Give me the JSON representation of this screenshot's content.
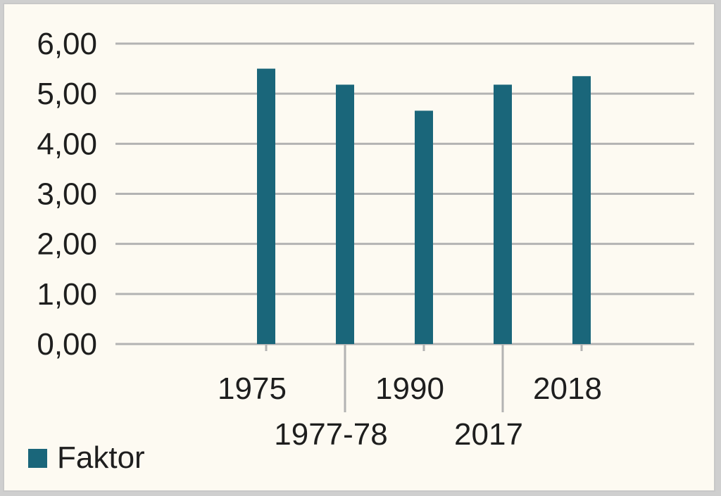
{
  "chart_data": {
    "type": "bar",
    "categories": [
      "1975",
      "1977-78",
      "1990",
      "2017",
      "2018"
    ],
    "series": [
      {
        "name": "Faktor",
        "values": [
          5.5,
          5.18,
          4.66,
          5.18,
          5.35
        ]
      }
    ],
    "ylim": [
      0,
      6
    ],
    "yticks": [
      "0,00",
      "1,00",
      "2,00",
      "3,00",
      "4,00",
      "5,00",
      "6,00"
    ],
    "grid": true,
    "legend_position": "bottom-left",
    "bar_color": "#1a667a",
    "grid_color": "#b3b3b3"
  }
}
